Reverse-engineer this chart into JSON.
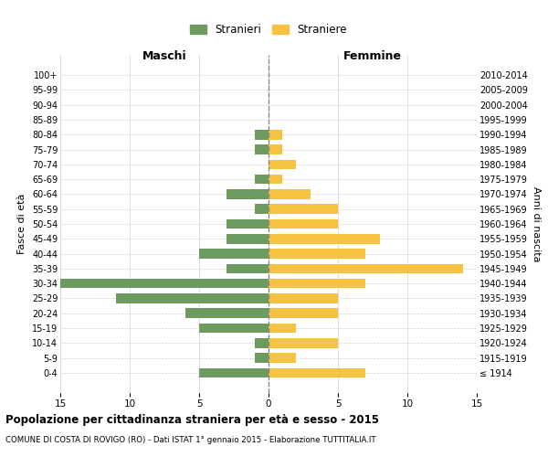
{
  "age_groups": [
    "100+",
    "95-99",
    "90-94",
    "85-89",
    "80-84",
    "75-79",
    "70-74",
    "65-69",
    "60-64",
    "55-59",
    "50-54",
    "45-49",
    "40-44",
    "35-39",
    "30-34",
    "25-29",
    "20-24",
    "15-19",
    "10-14",
    "5-9",
    "0-4"
  ],
  "birth_years": [
    "≤ 1914",
    "1915-1919",
    "1920-1924",
    "1925-1929",
    "1930-1934",
    "1935-1939",
    "1940-1944",
    "1945-1949",
    "1950-1954",
    "1955-1959",
    "1960-1964",
    "1965-1969",
    "1970-1974",
    "1975-1979",
    "1980-1984",
    "1985-1989",
    "1990-1994",
    "1995-1999",
    "2000-2004",
    "2005-2009",
    "2010-2014"
  ],
  "males": [
    0,
    0,
    0,
    0,
    1,
    1,
    0,
    1,
    3,
    1,
    3,
    3,
    5,
    3,
    15,
    11,
    6,
    5,
    1,
    1,
    5
  ],
  "females": [
    0,
    0,
    0,
    0,
    1,
    1,
    2,
    1,
    3,
    5,
    5,
    8,
    7,
    14,
    7,
    5,
    5,
    2,
    5,
    2,
    7
  ],
  "male_color": "#6d9b5f",
  "female_color": "#f5c242",
  "background_color": "#ffffff",
  "grid_color": "#d0d0d0",
  "center_line_color": "#888888",
  "xlim": 15,
  "title": "Popolazione per cittadinanza straniera per età e sesso - 2015",
  "subtitle": "COMUNE DI COSTA DI ROVIGO (RO) - Dati ISTAT 1° gennaio 2015 - Elaborazione TUTTITALIA.IT",
  "ylabel_left": "Fasce di età",
  "ylabel_right": "Anni di nascita",
  "header_left": "Maschi",
  "header_right": "Femmine",
  "legend_male": "Stranieri",
  "legend_female": "Straniere"
}
